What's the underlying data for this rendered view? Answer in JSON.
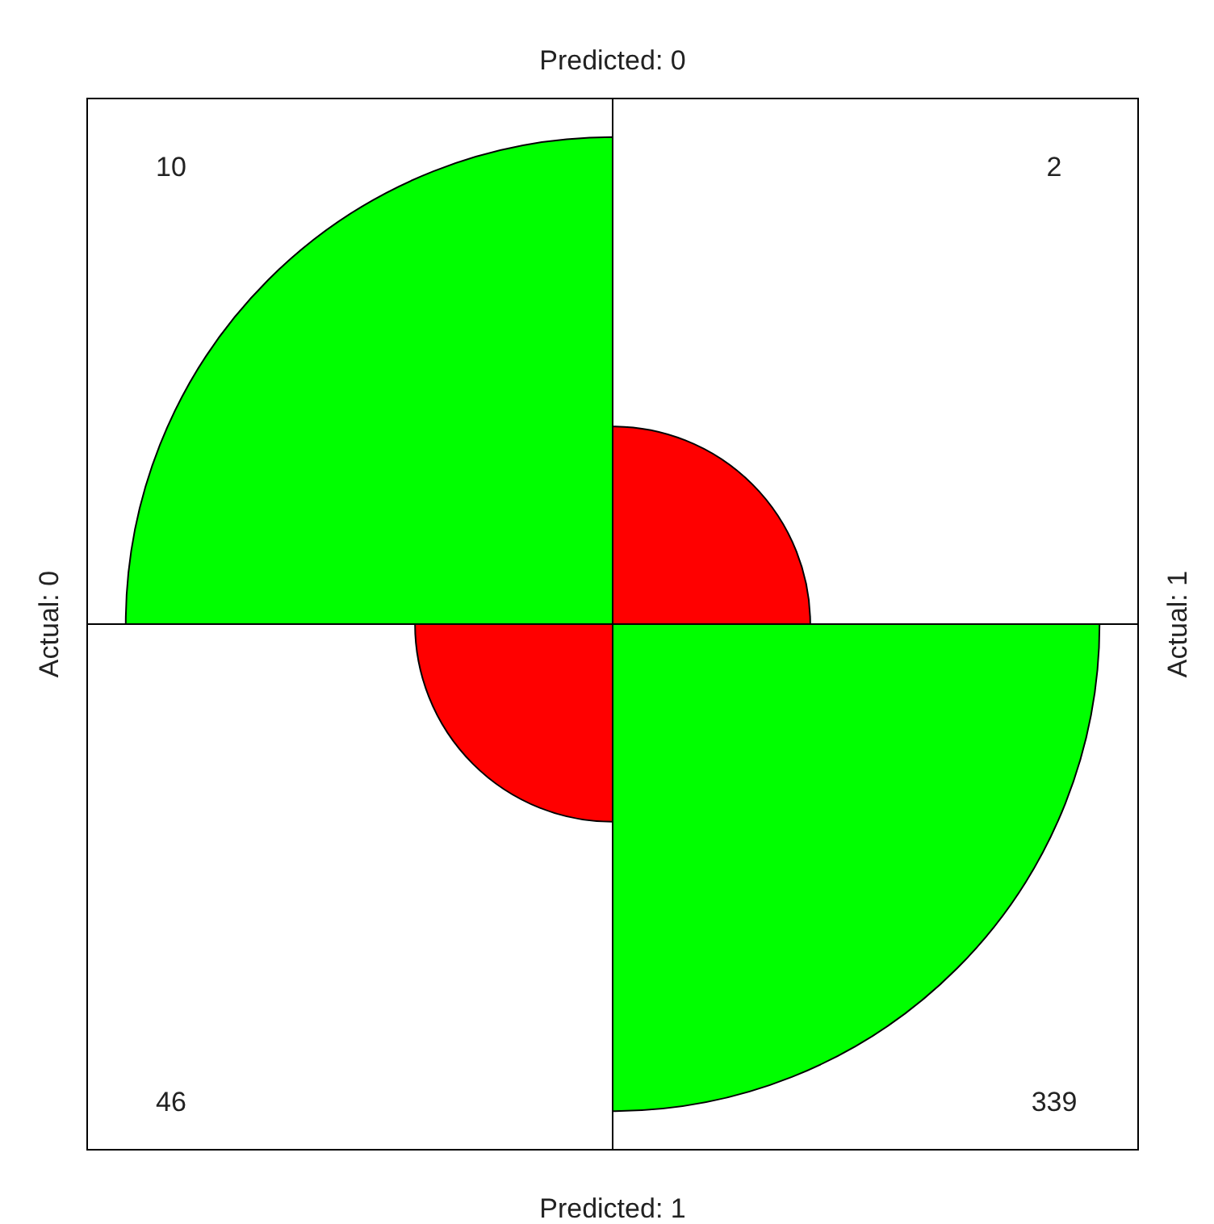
{
  "chart_data": {
    "type": "other",
    "categories": [
      "Actual: 0",
      "Actual: 1"
    ],
    "series": [
      {
        "name": "Predicted: 0",
        "values": [
          10,
          2
        ],
        "colors": [
          "#00ff00",
          "#ff0000"
        ]
      },
      {
        "name": "Predicted: 1",
        "values": [
          46,
          339
        ],
        "colors": [
          "#ff0000",
          "#00ff00"
        ]
      }
    ],
    "data_labels": true
  }
}
